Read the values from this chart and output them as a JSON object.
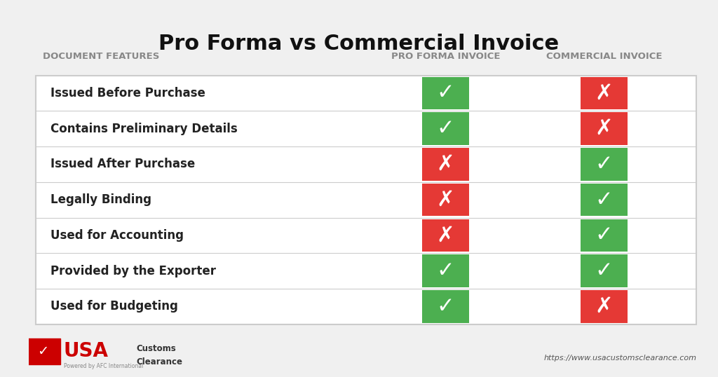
{
  "title": "Pro Forma vs Commercial Invoice",
  "header_col1": "DOCUMENT FEATURES",
  "header_col2": "PRO FORMA INVOICE",
  "header_col3": "COMMERCIAL INVOICE",
  "features": [
    "Issued Before Purchase",
    "Contains Preliminary Details",
    "Issued After Purchase",
    "Legally Binding",
    "Used for Accounting",
    "Provided by the Exporter",
    "Used for Budgeting"
  ],
  "pro_forma": [
    true,
    true,
    false,
    false,
    false,
    true,
    true
  ],
  "commercial": [
    false,
    false,
    true,
    true,
    true,
    true,
    false
  ],
  "green": "#4CAF50",
  "red": "#e53935",
  "bg_color": "#f0f0f0",
  "table_bg": "#ffffff",
  "row_line_color": "#cccccc",
  "border_color": "#cccccc",
  "title_fontsize": 22,
  "header_fontsize": 9.5,
  "feature_fontsize": 12,
  "url_text": "https://www.usacustomsclearance.com",
  "logo_text_usa": "USA",
  "logo_text_customs": "Customs\nClearance",
  "logo_text_powered": "Powered by AFC International"
}
